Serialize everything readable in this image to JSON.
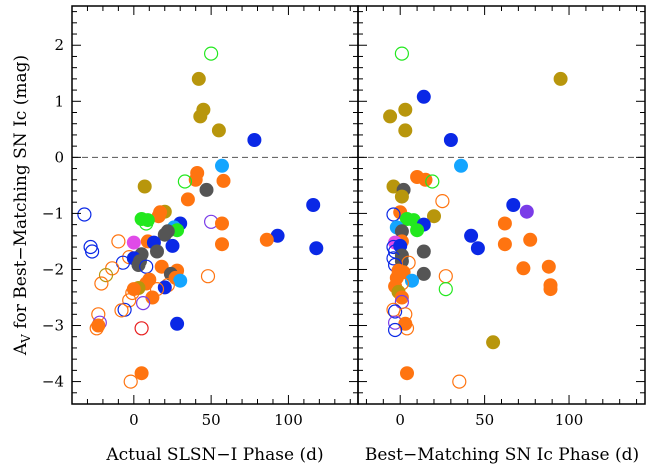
{
  "chart_data": {
    "type": "scatter",
    "grid": false,
    "ylabel_main": "A",
    "ylabel_sub": "V",
    "ylabel_rest": " for Best−Matching SN Ic (mag)",
    "ylim": [
      -4.4,
      2.7
    ],
    "yticks": [
      "−4",
      "−3",
      "−2",
      "−1",
      "0",
      "1",
      "2"
    ],
    "yticks_values": [
      -4,
      -3,
      -2,
      -1,
      0,
      1,
      2
    ],
    "reference_line_y": 0,
    "colors": {
      "olive": "#B8960C",
      "orange": "#FF7410",
      "blue": "#0A28E6",
      "lightblue": "#14A5FF",
      "green": "#22E81E",
      "gray": "#555555",
      "red": "#E81E1E",
      "magenta": "#E04BE8",
      "purple": "#7A3CE8"
    },
    "panels": [
      {
        "xlabel": "Actual SLSN−I Phase (d)",
        "xlim": [
          -40,
          145
        ],
        "xticks": [
          "0",
          "50",
          "100"
        ],
        "xticks_values": [
          0,
          50,
          100
        ],
        "points": [
          {
            "x": 50,
            "y": 1.85,
            "c": "green",
            "f": false
          },
          {
            "x": 42,
            "y": 1.4,
            "c": "olive",
            "f": true
          },
          {
            "x": 45,
            "y": 0.85,
            "c": "olive",
            "f": true
          },
          {
            "x": 43,
            "y": 0.73,
            "c": "olive",
            "f": true
          },
          {
            "x": 55,
            "y": 0.48,
            "c": "olive",
            "f": true
          },
          {
            "x": 78,
            "y": 0.31,
            "c": "blue",
            "f": true
          },
          {
            "x": 57,
            "y": -0.15,
            "c": "lightblue",
            "f": true
          },
          {
            "x": 41,
            "y": -0.28,
            "c": "orange",
            "f": true
          },
          {
            "x": 40,
            "y": -0.4,
            "c": "orange",
            "f": true
          },
          {
            "x": 58,
            "y": -0.42,
            "c": "orange",
            "f": true
          },
          {
            "x": 33,
            "y": -0.43,
            "c": "green",
            "f": false
          },
          {
            "x": 47,
            "y": -0.58,
            "c": "gray",
            "f": true
          },
          {
            "x": 35,
            "y": -0.75,
            "c": "orange",
            "f": true
          },
          {
            "x": 116,
            "y": -0.85,
            "c": "blue",
            "f": true
          },
          {
            "x": 20,
            "y": -0.97,
            "c": "olive",
            "f": true
          },
          {
            "x": 17,
            "y": -0.98,
            "c": "orange",
            "f": true
          },
          {
            "x": -32,
            "y": -1.02,
            "c": "blue",
            "f": false
          },
          {
            "x": 16,
            "y": -1.05,
            "c": "orange",
            "f": true
          },
          {
            "x": 5,
            "y": -1.1,
            "c": "green",
            "f": true
          },
          {
            "x": 9,
            "y": -1.12,
            "c": "green",
            "f": true
          },
          {
            "x": 50,
            "y": -1.15,
            "c": "purple",
            "f": false
          },
          {
            "x": 8,
            "y": -1.18,
            "c": "green",
            "f": false
          },
          {
            "x": 57,
            "y": -1.18,
            "c": "orange",
            "f": true
          },
          {
            "x": 30,
            "y": -1.18,
            "c": "blue",
            "f": true
          },
          {
            "x": 7,
            "y": -0.52,
            "c": "olive",
            "f": true
          },
          {
            "x": 26,
            "y": -1.25,
            "c": "lightblue",
            "f": true
          },
          {
            "x": 28,
            "y": -1.3,
            "c": "green",
            "f": true
          },
          {
            "x": 22,
            "y": -1.32,
            "c": "gray",
            "f": true
          },
          {
            "x": 20,
            "y": -1.38,
            "c": "gray",
            "f": true
          },
          {
            "x": 93,
            "y": -1.4,
            "c": "blue",
            "f": true
          },
          {
            "x": 86,
            "y": -1.47,
            "c": "orange",
            "f": true
          },
          {
            "x": 9,
            "y": -1.5,
            "c": "orange",
            "f": true
          },
          {
            "x": 13,
            "y": -1.52,
            "c": "blue",
            "f": true
          },
          {
            "x": 57,
            "y": -1.55,
            "c": "orange",
            "f": true
          },
          {
            "x": 0,
            "y": -1.52,
            "c": "magenta",
            "f": true
          },
          {
            "x": -10,
            "y": -1.5,
            "c": "orange",
            "f": false
          },
          {
            "x": 25,
            "y": -1.58,
            "c": "blue",
            "f": true
          },
          {
            "x": -28,
            "y": -1.6,
            "c": "blue",
            "f": false
          },
          {
            "x": 118,
            "y": -1.62,
            "c": "blue",
            "f": true
          },
          {
            "x": -27,
            "y": -1.68,
            "c": "blue",
            "f": false
          },
          {
            "x": 15,
            "y": -1.68,
            "c": "gray",
            "f": true
          },
          {
            "x": 5,
            "y": -1.73,
            "c": "gray",
            "f": true
          },
          {
            "x": -3,
            "y": -1.78,
            "c": "orange",
            "f": false
          },
          {
            "x": 0,
            "y": -1.8,
            "c": "blue",
            "f": true
          },
          {
            "x": 4,
            "y": -1.85,
            "c": "gray",
            "f": true
          },
          {
            "x": -7,
            "y": -1.88,
            "c": "blue",
            "f": false
          },
          {
            "x": 3,
            "y": -1.92,
            "c": "gray",
            "f": true
          },
          {
            "x": 8,
            "y": -1.95,
            "c": "blue",
            "f": false
          },
          {
            "x": 18,
            "y": -1.95,
            "c": "orange",
            "f": true
          },
          {
            "x": -14,
            "y": -1.98,
            "c": "orange",
            "f": false
          },
          {
            "x": 28,
            "y": -2.02,
            "c": "orange",
            "f": true
          },
          {
            "x": 24,
            "y": -2.08,
            "c": "gray",
            "f": true
          },
          {
            "x": -18,
            "y": -2.1,
            "c": "olive",
            "f": false
          },
          {
            "x": 48,
            "y": -2.12,
            "c": "orange",
            "f": false
          },
          {
            "x": 27,
            "y": -2.15,
            "c": "orange",
            "f": true
          },
          {
            "x": 10,
            "y": -2.18,
            "c": "orange",
            "f": true
          },
          {
            "x": 30,
            "y": -2.2,
            "c": "lightblue",
            "f": true
          },
          {
            "x": -21,
            "y": -2.25,
            "c": "orange",
            "f": false
          },
          {
            "x": 8,
            "y": -2.25,
            "c": "orange",
            "f": true
          },
          {
            "x": 22,
            "y": -2.28,
            "c": "orange",
            "f": false
          },
          {
            "x": 20,
            "y": -2.32,
            "c": "blue",
            "f": true
          },
          {
            "x": 3,
            "y": -2.33,
            "c": "olive",
            "f": true
          },
          {
            "x": 15,
            "y": -2.35,
            "c": "orange",
            "f": false
          },
          {
            "x": 0,
            "y": -2.35,
            "c": "orange",
            "f": true
          },
          {
            "x": -1,
            "y": -2.42,
            "c": "orange",
            "f": false
          },
          {
            "x": 12,
            "y": -2.5,
            "c": "orange",
            "f": true
          },
          {
            "x": -3,
            "y": -2.55,
            "c": "orange",
            "f": false
          },
          {
            "x": 6,
            "y": -2.6,
            "c": "purple",
            "f": false
          },
          {
            "x": -6,
            "y": -2.72,
            "c": "blue",
            "f": false
          },
          {
            "x": -8,
            "y": -2.73,
            "c": "orange",
            "f": false
          },
          {
            "x": -23,
            "y": -2.8,
            "c": "orange",
            "f": false
          },
          {
            "x": -22,
            "y": -2.95,
            "c": "purple",
            "f": false
          },
          {
            "x": 28,
            "y": -2.97,
            "c": "blue",
            "f": true
          },
          {
            "x": -23,
            "y": -3.0,
            "c": "orange",
            "f": true
          },
          {
            "x": -24,
            "y": -3.05,
            "c": "orange",
            "f": false
          },
          {
            "x": 5,
            "y": -3.05,
            "c": "red",
            "f": false
          },
          {
            "x": 5,
            "y": -3.85,
            "c": "orange",
            "f": true
          },
          {
            "x": -2,
            "y": -4.0,
            "c": "orange",
            "f": false
          }
        ]
      },
      {
        "xlabel": "Best−Matching SN Ic Phase (d)",
        "xlim": [
          -25,
          145
        ],
        "xticks": [
          "0",
          "50",
          "100"
        ],
        "xticks_values": [
          0,
          50,
          100
        ],
        "points": [
          {
            "x": 1,
            "y": 1.85,
            "c": "green",
            "f": false
          },
          {
            "x": 95,
            "y": 1.4,
            "c": "olive",
            "f": true
          },
          {
            "x": 14,
            "y": 1.08,
            "c": "blue",
            "f": true
          },
          {
            "x": 3,
            "y": 0.85,
            "c": "olive",
            "f": true
          },
          {
            "x": -6,
            "y": 0.73,
            "c": "olive",
            "f": true
          },
          {
            "x": 3,
            "y": 0.48,
            "c": "olive",
            "f": true
          },
          {
            "x": 30,
            "y": 0.31,
            "c": "blue",
            "f": true
          },
          {
            "x": 36,
            "y": -0.15,
            "c": "lightblue",
            "f": true
          },
          {
            "x": 10,
            "y": -0.35,
            "c": "orange",
            "f": true
          },
          {
            "x": 15,
            "y": -0.4,
            "c": "orange",
            "f": true
          },
          {
            "x": 19,
            "y": -0.43,
            "c": "green",
            "f": false
          },
          {
            "x": -4,
            "y": -0.52,
            "c": "olive",
            "f": true
          },
          {
            "x": 2,
            "y": -0.58,
            "c": "gray",
            "f": true
          },
          {
            "x": 1,
            "y": -0.7,
            "c": "olive",
            "f": true
          },
          {
            "x": 25,
            "y": -0.78,
            "c": "orange",
            "f": false
          },
          {
            "x": 67,
            "y": -0.85,
            "c": "blue",
            "f": true
          },
          {
            "x": 75,
            "y": -0.97,
            "c": "purple",
            "f": true
          },
          {
            "x": 0,
            "y": -0.98,
            "c": "orange",
            "f": true
          },
          {
            "x": 20,
            "y": -1.05,
            "c": "olive",
            "f": true
          },
          {
            "x": -4,
            "y": -1.02,
            "c": "blue",
            "f": false
          },
          {
            "x": 4,
            "y": -1.1,
            "c": "green",
            "f": true
          },
          {
            "x": 8,
            "y": -1.12,
            "c": "green",
            "f": true
          },
          {
            "x": 62,
            "y": -1.18,
            "c": "orange",
            "f": true
          },
          {
            "x": 14,
            "y": -1.2,
            "c": "blue",
            "f": true
          },
          {
            "x": -2,
            "y": -1.25,
            "c": "lightblue",
            "f": true
          },
          {
            "x": 10,
            "y": -1.3,
            "c": "green",
            "f": true
          },
          {
            "x": 1,
            "y": -1.32,
            "c": "gray",
            "f": true
          },
          {
            "x": 42,
            "y": -1.4,
            "c": "blue",
            "f": true
          },
          {
            "x": 77,
            "y": -1.47,
            "c": "orange",
            "f": true
          },
          {
            "x": 1,
            "y": -1.5,
            "c": "orange",
            "f": true
          },
          {
            "x": -3,
            "y": -1.52,
            "c": "magenta",
            "f": true
          },
          {
            "x": 62,
            "y": -1.55,
            "c": "orange",
            "f": true
          },
          {
            "x": 0,
            "y": -1.58,
            "c": "blue",
            "f": true
          },
          {
            "x": -4,
            "y": -1.6,
            "c": "blue",
            "f": false
          },
          {
            "x": 46,
            "y": -1.62,
            "c": "blue",
            "f": true
          },
          {
            "x": 14,
            "y": -1.68,
            "c": "gray",
            "f": true
          },
          {
            "x": -3,
            "y": -1.68,
            "c": "blue",
            "f": false
          },
          {
            "x": 1,
            "y": -1.75,
            "c": "gray",
            "f": true
          },
          {
            "x": -4,
            "y": -1.8,
            "c": "blue",
            "f": false
          },
          {
            "x": 1,
            "y": -1.85,
            "c": "gray",
            "f": true
          },
          {
            "x": 5,
            "y": -1.88,
            "c": "orange",
            "f": false
          },
          {
            "x": -3,
            "y": -1.92,
            "c": "blue",
            "f": false
          },
          {
            "x": 88,
            "y": -1.95,
            "c": "orange",
            "f": true
          },
          {
            "x": 73,
            "y": -1.98,
            "c": "orange",
            "f": true
          },
          {
            "x": -1,
            "y": -2.02,
            "c": "orange",
            "f": true
          },
          {
            "x": 2,
            "y": -2.05,
            "c": "orange",
            "f": true
          },
          {
            "x": 14,
            "y": -2.08,
            "c": "gray",
            "f": true
          },
          {
            "x": 27,
            "y": -2.12,
            "c": "orange",
            "f": false
          },
          {
            "x": -2,
            "y": -2.15,
            "c": "orange",
            "f": true
          },
          {
            "x": 7,
            "y": -2.2,
            "c": "lightblue",
            "f": true
          },
          {
            "x": 1,
            "y": -2.25,
            "c": "orange",
            "f": false
          },
          {
            "x": 89,
            "y": -2.28,
            "c": "orange",
            "f": true
          },
          {
            "x": -3,
            "y": -2.3,
            "c": "orange",
            "f": true
          },
          {
            "x": 89,
            "y": -2.35,
            "c": "orange",
            "f": true
          },
          {
            "x": 27,
            "y": -2.35,
            "c": "green",
            "f": false
          },
          {
            "x": -1,
            "y": -2.4,
            "c": "olive",
            "f": true
          },
          {
            "x": 1,
            "y": -2.5,
            "c": "orange",
            "f": true
          },
          {
            "x": 1,
            "y": -2.58,
            "c": "purple",
            "f": false
          },
          {
            "x": -4,
            "y": -2.72,
            "c": "orange",
            "f": false
          },
          {
            "x": -3,
            "y": -2.75,
            "c": "blue",
            "f": false
          },
          {
            "x": 3,
            "y": -2.8,
            "c": "orange",
            "f": false
          },
          {
            "x": -3,
            "y": -2.95,
            "c": "purple",
            "f": false
          },
          {
            "x": 3,
            "y": -2.97,
            "c": "orange",
            "f": true
          },
          {
            "x": 4,
            "y": -3.05,
            "c": "orange",
            "f": false
          },
          {
            "x": -3,
            "y": -3.08,
            "c": "blue",
            "f": false
          },
          {
            "x": 55,
            "y": -3.3,
            "c": "olive",
            "f": true
          },
          {
            "x": 4,
            "y": -3.85,
            "c": "orange",
            "f": true
          },
          {
            "x": 35,
            "y": -4.0,
            "c": "orange",
            "f": false
          }
        ]
      }
    ]
  }
}
